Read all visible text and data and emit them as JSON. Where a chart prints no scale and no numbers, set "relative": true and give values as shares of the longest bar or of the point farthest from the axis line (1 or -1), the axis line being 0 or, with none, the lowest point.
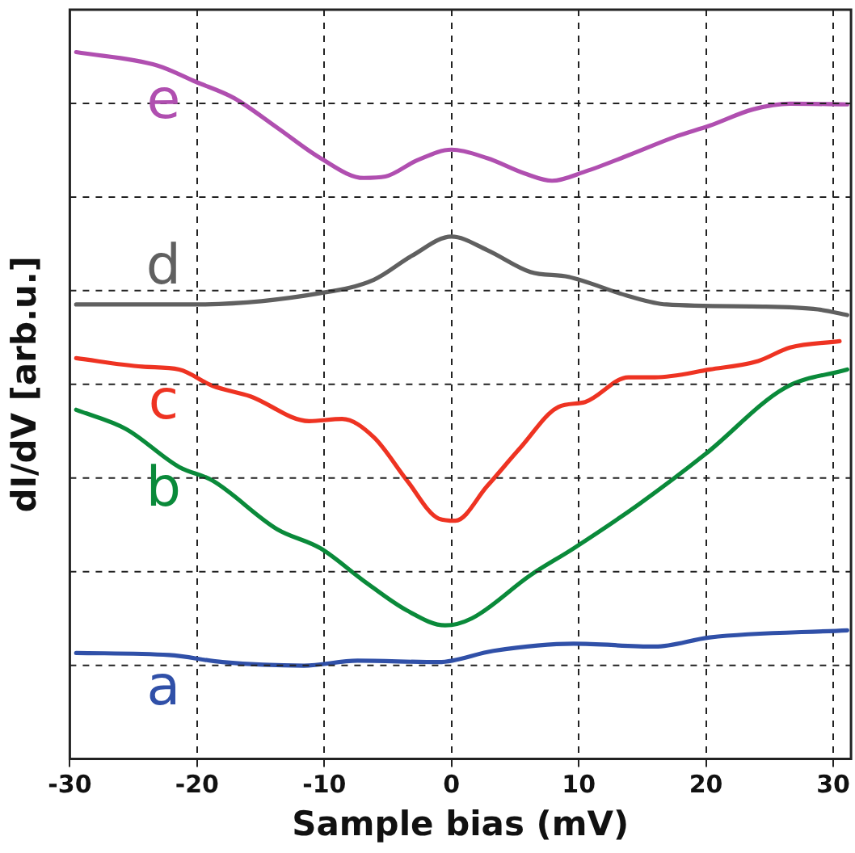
{
  "chart_data": {
    "type": "line",
    "xlabel": "Sample bias (mV)",
    "ylabel": "dI/dV [arb.u.]",
    "relative": true,
    "grid": true,
    "legend": false,
    "marker": "none",
    "line_style": "solid",
    "xlim": [
      -30,
      31.4
    ],
    "xticks": [
      -30,
      -20,
      -10,
      0,
      10,
      20,
      30
    ],
    "series": [
      {
        "name": "e",
        "color": "#b04fb0",
        "x": [
          -29.5,
          -23.1,
          -20.1,
          -17.1,
          -13.7,
          -10.3,
          -6.9,
          -5.2,
          -2.7,
          0,
          2.8,
          5.8,
          7.9,
          10.5,
          13.9,
          17.7,
          20.3,
          23.7,
          26.6,
          31.1
        ],
        "values": [
          1.0,
          0.981,
          0.958,
          0.935,
          0.893,
          0.85,
          0.822,
          0.824,
          0.847,
          0.862,
          0.85,
          0.828,
          0.818,
          0.831,
          0.854,
          0.881,
          0.896,
          0.919,
          0.927,
          0.926
        ]
      },
      {
        "name": "d",
        "color": "#606060",
        "x": [
          -29.5,
          -20.1,
          -10.3,
          -6.1,
          -3.1,
          0,
          2.8,
          6.2,
          9.2,
          13.9,
          16.9,
          24.5,
          28.8,
          31.1
        ],
        "values": [
          0.643,
          0.643,
          0.659,
          0.678,
          0.712,
          0.739,
          0.72,
          0.689,
          0.682,
          0.655,
          0.643,
          0.64,
          0.636,
          0.628
        ]
      },
      {
        "name": "c",
        "color": "#ee3322",
        "x": [
          -29.5,
          -24.3,
          -21.4,
          -18.8,
          -15.8,
          -11.2,
          -8.6,
          -6.1,
          -3.5,
          -1.0,
          0.3,
          2.8,
          5.4,
          8.4,
          10.5,
          13.9,
          16.0,
          20.3,
          24.1,
          26.6,
          30.5
        ],
        "values": [
          0.567,
          0.555,
          0.551,
          0.528,
          0.513,
          0.478,
          0.481,
          0.455,
          0.394,
          0.34,
          0.337,
          0.386,
          0.44,
          0.498,
          0.505,
          0.54,
          0.54,
          0.551,
          0.563,
          0.582,
          0.591
        ]
      },
      {
        "name": "b",
        "color": "#0a8a3a",
        "x": [
          -29.5,
          -25.6,
          -21.4,
          -18.8,
          -13.7,
          -10.3,
          -6.9,
          -3.5,
          -0.5,
          1.6,
          6.2,
          9.6,
          14.7,
          20.0,
          26.2,
          31.1
        ],
        "values": [
          0.494,
          0.467,
          0.413,
          0.394,
          0.325,
          0.298,
          0.252,
          0.21,
          0.189,
          0.199,
          0.26,
          0.298,
          0.36,
          0.432,
          0.525,
          0.551
        ]
      },
      {
        "name": "a",
        "color": "#3050a8",
        "x": [
          -29.5,
          -22.2,
          -18.0,
          -11.6,
          -7.4,
          -1.0,
          3.3,
          9.6,
          16.0,
          20.3,
          31.1
        ],
        "values": [
          0.15,
          0.147,
          0.137,
          0.132,
          0.139,
          0.137,
          0.153,
          0.163,
          0.159,
          0.172,
          0.182
        ]
      }
    ]
  }
}
